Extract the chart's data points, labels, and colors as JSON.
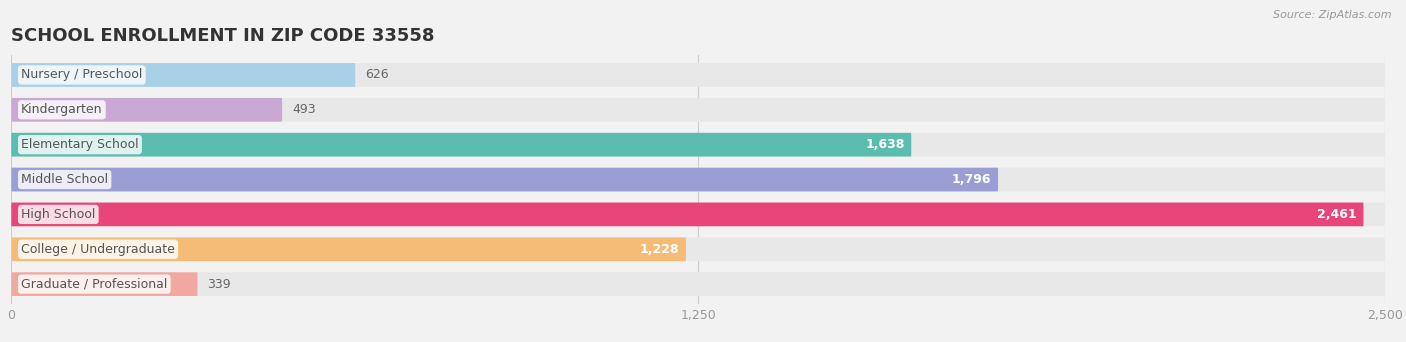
{
  "title": "SCHOOL ENROLLMENT IN ZIP CODE 33558",
  "source": "Source: ZipAtlas.com",
  "categories": [
    "Nursery / Preschool",
    "Kindergarten",
    "Elementary School",
    "Middle School",
    "High School",
    "College / Undergraduate",
    "Graduate / Professional"
  ],
  "values": [
    626,
    493,
    1638,
    1796,
    2461,
    1228,
    339
  ],
  "bar_colors": [
    "#a8d0e6",
    "#c9a8d4",
    "#5bbcb0",
    "#9b9ed4",
    "#e8457a",
    "#f5bc78",
    "#f0a8a0"
  ],
  "background_color": "#f2f2f2",
  "bar_background_color": "#e8e8e8",
  "xlim": [
    0,
    2500
  ],
  "xticks": [
    0,
    1250,
    2500
  ],
  "title_fontsize": 13,
  "label_fontsize": 9,
  "value_fontsize": 9,
  "bar_height": 0.68,
  "bar_gap": 1.0,
  "title_color": "#333333",
  "label_color": "#555555",
  "value_color_inside": "#ffffff",
  "value_color_outside": "#666666",
  "inside_threshold": 700
}
